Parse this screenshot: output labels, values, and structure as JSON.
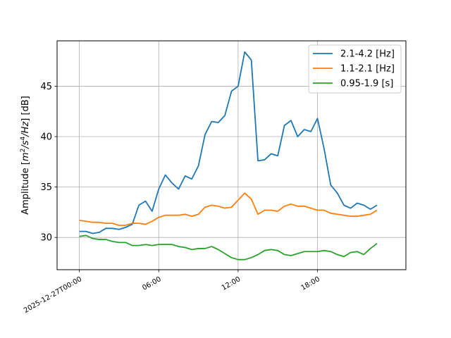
{
  "chart_data": {
    "type": "line",
    "title": "",
    "xlabel": "",
    "ylabel_parts": [
      "Amplitude [",
      "m",
      "2",
      "/",
      "s",
      "4",
      "/",
      "Hz",
      "] [dB]"
    ],
    "x_axis": "time",
    "x_start": "2025-12-27T00:00",
    "x_step_minutes": 30,
    "xlim": [
      "2025-12-26T22:19",
      "2025-12-28T00:41"
    ],
    "ylim": [
      26.8,
      49.5
    ],
    "x_ticks": [
      {
        "hour": 0,
        "label": "2025-12-27T00:00"
      },
      {
        "hour": 6,
        "label": "06:00"
      },
      {
        "hour": 12,
        "label": "12:00"
      },
      {
        "hour": 18,
        "label": "18:00"
      }
    ],
    "y_ticks": [
      30,
      35,
      40,
      45
    ],
    "grid": true,
    "legend_position": "top-right",
    "series": [
      {
        "name": "2.1-4.2 [Hz]",
        "color": "#1f77b4",
        "values": [
          30.6,
          30.6,
          30.4,
          30.5,
          30.9,
          30.9,
          30.8,
          31.0,
          31.3,
          33.2,
          33.6,
          32.6,
          34.8,
          36.2,
          35.4,
          34.8,
          36.1,
          35.8,
          37.1,
          40.2,
          41.5,
          41.4,
          42.1,
          44.5,
          45.0,
          48.4,
          47.6,
          37.6,
          37.7,
          38.3,
          38.1,
          41.1,
          41.6,
          40.0,
          40.7,
          40.5,
          41.8,
          38.8,
          35.2,
          34.4,
          33.2,
          32.9,
          33.4,
          33.2,
          32.8,
          33.2
        ]
      },
      {
        "name": "1.1-2.1 [Hz]",
        "color": "#ff7f0e",
        "values": [
          31.7,
          31.6,
          31.5,
          31.5,
          31.4,
          31.4,
          31.2,
          31.2,
          31.4,
          31.4,
          31.3,
          31.6,
          32.0,
          32.2,
          32.2,
          32.2,
          32.3,
          32.1,
          32.3,
          33.0,
          33.2,
          33.1,
          32.9,
          33.0,
          33.7,
          34.4,
          33.8,
          32.3,
          32.7,
          32.7,
          32.6,
          33.1,
          33.3,
          33.1,
          33.1,
          32.9,
          32.7,
          32.7,
          32.4,
          32.3,
          32.2,
          32.1,
          32.1,
          32.2,
          32.3,
          32.7
        ]
      },
      {
        "name": "0.95-1.9 [s]",
        "color": "#2ca02c",
        "values": [
          30.1,
          30.2,
          29.9,
          29.8,
          29.8,
          29.6,
          29.5,
          29.5,
          29.2,
          29.2,
          29.3,
          29.2,
          29.3,
          29.3,
          29.3,
          29.1,
          29.0,
          28.8,
          28.9,
          28.9,
          29.1,
          28.8,
          28.4,
          28.0,
          27.8,
          27.8,
          28.0,
          28.3,
          28.7,
          28.8,
          28.7,
          28.3,
          28.2,
          28.4,
          28.6,
          28.6,
          28.6,
          28.7,
          28.6,
          28.3,
          28.1,
          28.5,
          28.6,
          28.3,
          28.9,
          29.4
        ]
      }
    ]
  }
}
